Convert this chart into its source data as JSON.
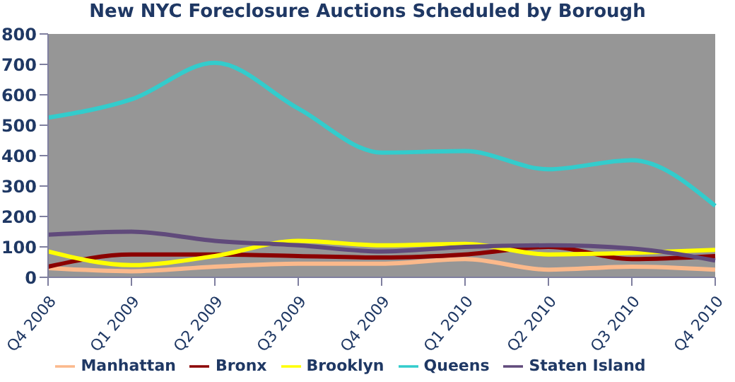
{
  "chart_data": {
    "type": "line",
    "title": "New NYC Foreclosure Auctions Scheduled by Borough",
    "categories": [
      "Q4 2008",
      "Q1 2009",
      "Q2 2009",
      "Q3 2009",
      "Q4 2009",
      "Q1 2010",
      "Q2 2010",
      "Q3 2010",
      "Q4 2010"
    ],
    "series": [
      {
        "name": "Manhattan",
        "color": "#fbb98b",
        "values": [
          30,
          20,
          35,
          45,
          45,
          60,
          25,
          35,
          25
        ]
      },
      {
        "name": "Bronx",
        "color": "#8b0000",
        "values": [
          35,
          75,
          75,
          70,
          65,
          75,
          100,
          60,
          70
        ]
      },
      {
        "name": "Brooklyn",
        "color": "#ffff00",
        "values": [
          85,
          40,
          70,
          120,
          105,
          110,
          75,
          80,
          90
        ]
      },
      {
        "name": "Queens",
        "color": "#33cccc",
        "values": [
          525,
          585,
          705,
          555,
          410,
          415,
          355,
          385,
          235
        ]
      },
      {
        "name": "Staten Island",
        "color": "#604a7b",
        "values": [
          140,
          150,
          120,
          105,
          85,
          100,
          105,
          95,
          55
        ]
      }
    ],
    "ylim": [
      0,
      800
    ],
    "yticks": [
      0,
      100,
      200,
      300,
      400,
      500,
      600,
      700,
      800
    ],
    "grid": false,
    "legend": "bottom",
    "marker": "none",
    "line_style": "solid"
  }
}
